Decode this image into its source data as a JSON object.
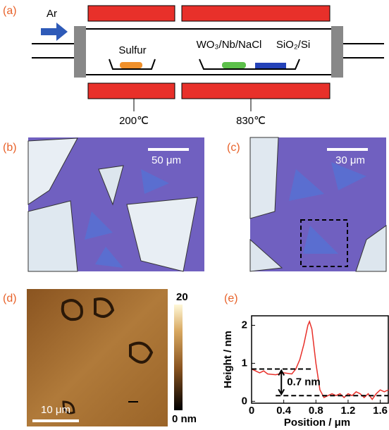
{
  "panel_a": {
    "label": "(a)",
    "gas": "Ar",
    "source": "Sulfur",
    "precursor": "WO₃/Nb/NaCl",
    "substrate": "SiO₂/Si",
    "temp_left": "200℃",
    "temp_right": "830℃"
  },
  "panel_b": {
    "label": "(b)",
    "scale_bar": "50 μm"
  },
  "panel_c": {
    "label": "(c)",
    "scale_bar": "30 μm"
  },
  "panel_d": {
    "label": "(d)",
    "scale_bar": "10 μm",
    "colorbar_max": "20",
    "colorbar_min": "0 nm"
  },
  "chart_data": {
    "type": "line",
    "panel_label": "(e)",
    "x_label": "Position / μm",
    "y_label": "Height / nm",
    "x": [
      0,
      0.05,
      0.1,
      0.15,
      0.2,
      0.3,
      0.4,
      0.5,
      0.55,
      0.6,
      0.65,
      0.7,
      0.72,
      0.75,
      0.8,
      0.85,
      0.9,
      0.95,
      1.0,
      1.05,
      1.1,
      1.15,
      1.2,
      1.25,
      1.3,
      1.35,
      1.4,
      1.45,
      1.5,
      1.55,
      1.6,
      1.65,
      1.7
    ],
    "series": [
      {
        "color": "#e8302a",
        "values": [
          0.85,
          0.8,
          0.75,
          0.8,
          0.72,
          0.7,
          0.75,
          0.72,
          0.85,
          1.1,
          1.5,
          2.0,
          2.1,
          1.9,
          1.0,
          0.3,
          0.1,
          0.15,
          0.2,
          0.15,
          0.2,
          0.1,
          0.2,
          0.15,
          0.25,
          0.2,
          0.1,
          0.2,
          0.05,
          0.2,
          0.3,
          0.25,
          0.3
        ]
      }
    ],
    "xlim": [
      0,
      1.7
    ],
    "ylim": [
      -0.05,
      2.25
    ],
    "xticks": [
      0,
      0.4,
      0.8,
      1.2,
      1.6
    ],
    "yticks": [
      0,
      1,
      2
    ],
    "reference_lines": [
      {
        "y": 0.85,
        "x": [
          0,
          0.75
        ]
      },
      {
        "y": 0.15,
        "x": [
          0.3,
          1.7
        ]
      }
    ],
    "annotation": "0.7 nm"
  }
}
